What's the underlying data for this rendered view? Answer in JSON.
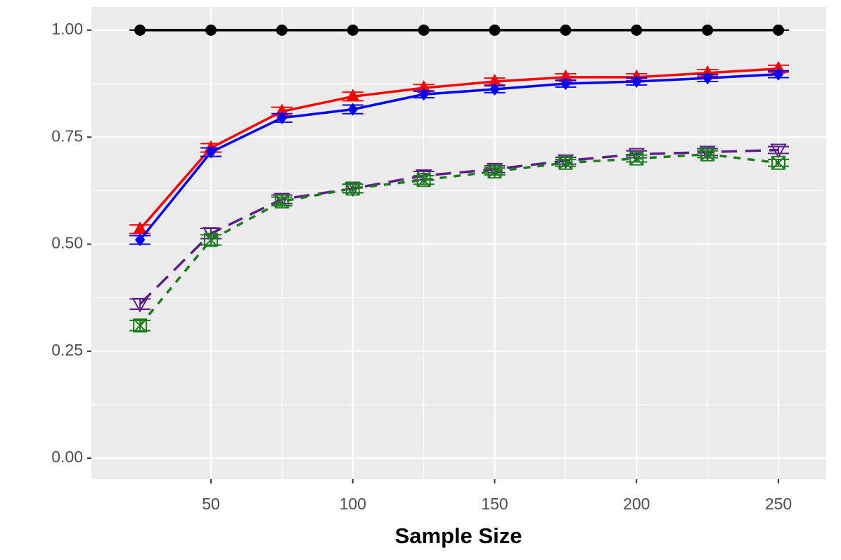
{
  "chart_data": {
    "type": "line",
    "x_label": "Sample Size",
    "x": [
      25,
      50,
      75,
      100,
      125,
      150,
      175,
      200,
      225,
      250
    ],
    "xlim": [
      7.87,
      266.85
    ],
    "xticks": [
      50,
      100,
      150,
      200,
      250
    ],
    "ylim": [
      -0.049,
      1.054
    ],
    "yticks": [
      {
        "value": 0,
        "label": "0.00"
      },
      {
        "value": 0.25,
        "label": "0.25"
      },
      {
        "value": 0.5,
        "label": "0.50"
      },
      {
        "value": 0.75,
        "label": "0.75"
      },
      {
        "value": 1,
        "label": "1.00"
      }
    ],
    "grid": true,
    "series": [
      {
        "color": "#000000",
        "dash": "solid",
        "marker": "circle",
        "values": [
          1,
          1,
          1,
          1,
          1,
          1,
          1,
          1,
          1,
          1
        ],
        "errors": [
          0,
          0,
          0,
          0,
          0,
          0,
          0,
          0,
          0,
          0
        ]
      },
      {
        "color": "#ff0000",
        "dash": "solid",
        "marker": "triangle-up",
        "values": [
          0.535,
          0.725,
          0.81,
          0.845,
          0.865,
          0.88,
          0.89,
          0.89,
          0.9,
          0.91
        ],
        "errors": [
          0.01,
          0.01,
          0.01,
          0.01,
          0.008,
          0.008,
          0.008,
          0.008,
          0.008,
          0.008
        ]
      },
      {
        "color": "#0000ff",
        "dash": "solid",
        "marker": "diamond",
        "values": [
          0.51,
          0.715,
          0.795,
          0.815,
          0.85,
          0.862,
          0.875,
          0.88,
          0.888,
          0.897
        ],
        "errors": [
          0.01,
          0.01,
          0.01,
          0.01,
          0.008,
          0.008,
          0.008,
          0.008,
          0.008,
          0.008
        ]
      },
      {
        "color": "#5b1f8a",
        "dash": "longdash",
        "marker": "triangle-down-open",
        "values": [
          0.36,
          0.525,
          0.605,
          0.63,
          0.66,
          0.675,
          0.695,
          0.71,
          0.715,
          0.72
        ],
        "errors": [
          0.012,
          0.012,
          0.01,
          0.01,
          0.01,
          0.008,
          0.008,
          0.008,
          0.008,
          0.008
        ]
      },
      {
        "color": "#1a7f1a",
        "dash": "dashed",
        "marker": "square-x-open",
        "values": [
          0.31,
          0.51,
          0.6,
          0.63,
          0.65,
          0.67,
          0.69,
          0.7,
          0.71,
          0.69
        ],
        "errors": [
          0.012,
          0.012,
          0.01,
          0.01,
          0.01,
          0.008,
          0.008,
          0.008,
          0.008,
          0.008
        ]
      }
    ]
  }
}
